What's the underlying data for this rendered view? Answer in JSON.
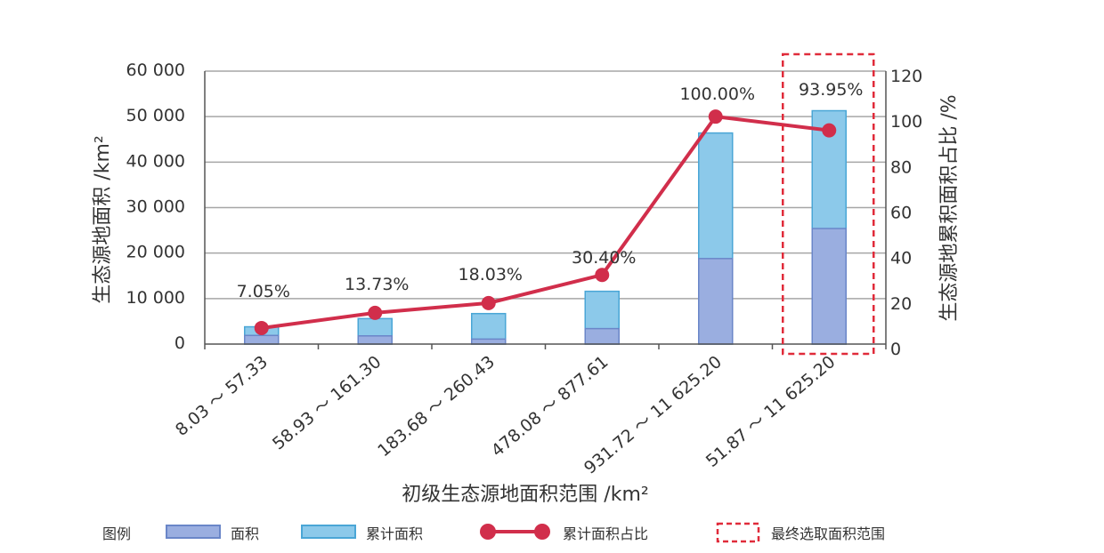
{
  "chart_data": {
    "type": "bar",
    "categories": [
      "8.03 ～ 57.33",
      "58.93 ～ 161.30",
      "183.68 ～ 260.43",
      "478.08 ～ 877.61",
      "931.72 ～ 11 625.20",
      "51.87 ～ 11 625.20"
    ],
    "series": [
      {
        "name": "面积",
        "values": [
          1900,
          1800,
          1100,
          3400,
          18800,
          25400
        ]
      },
      {
        "name": "累计面积",
        "values": [
          3800,
          5600,
          6700,
          11600,
          46400,
          51300
        ]
      },
      {
        "name": "累计面积占比",
        "values": [
          7.05,
          13.73,
          18.03,
          30.4,
          100.0,
          93.95
        ]
      }
    ],
    "data_labels": [
      "7.05%",
      "13.73%",
      "18.03%",
      "30.40%",
      "100.00%",
      "93.95%"
    ],
    "xlabel": "初级生态源地面积范围 /km²",
    "ylabel": "生态源地面积 /km²",
    "y2label": "生态源地累积面积占比 /%",
    "ylim": [
      0,
      60000
    ],
    "y2lim": [
      0,
      120
    ],
    "yticks": [
      "0",
      "10 000",
      "20 000",
      "30 000",
      "40 000",
      "50 000",
      "60 000"
    ],
    "y2ticks": [
      "0",
      "20",
      "40",
      "60",
      "80",
      "100",
      "120"
    ],
    "highlight_index": 5,
    "grid": true,
    "legend_position": "bottom",
    "legend_title": "图例",
    "legend": [
      "面积",
      "累计面积",
      "累计面积占比",
      "最终选取面积范围"
    ],
    "colors": {
      "area": "#9aaee0",
      "area_edge": "#6a86c8",
      "cumulative": "#8cc9ea",
      "cumulative_edge": "#4aa6d6",
      "line": "#d12e4b",
      "highlight": "#e02b3a",
      "grid": "#a6a6a6",
      "axis": "#555555"
    }
  }
}
